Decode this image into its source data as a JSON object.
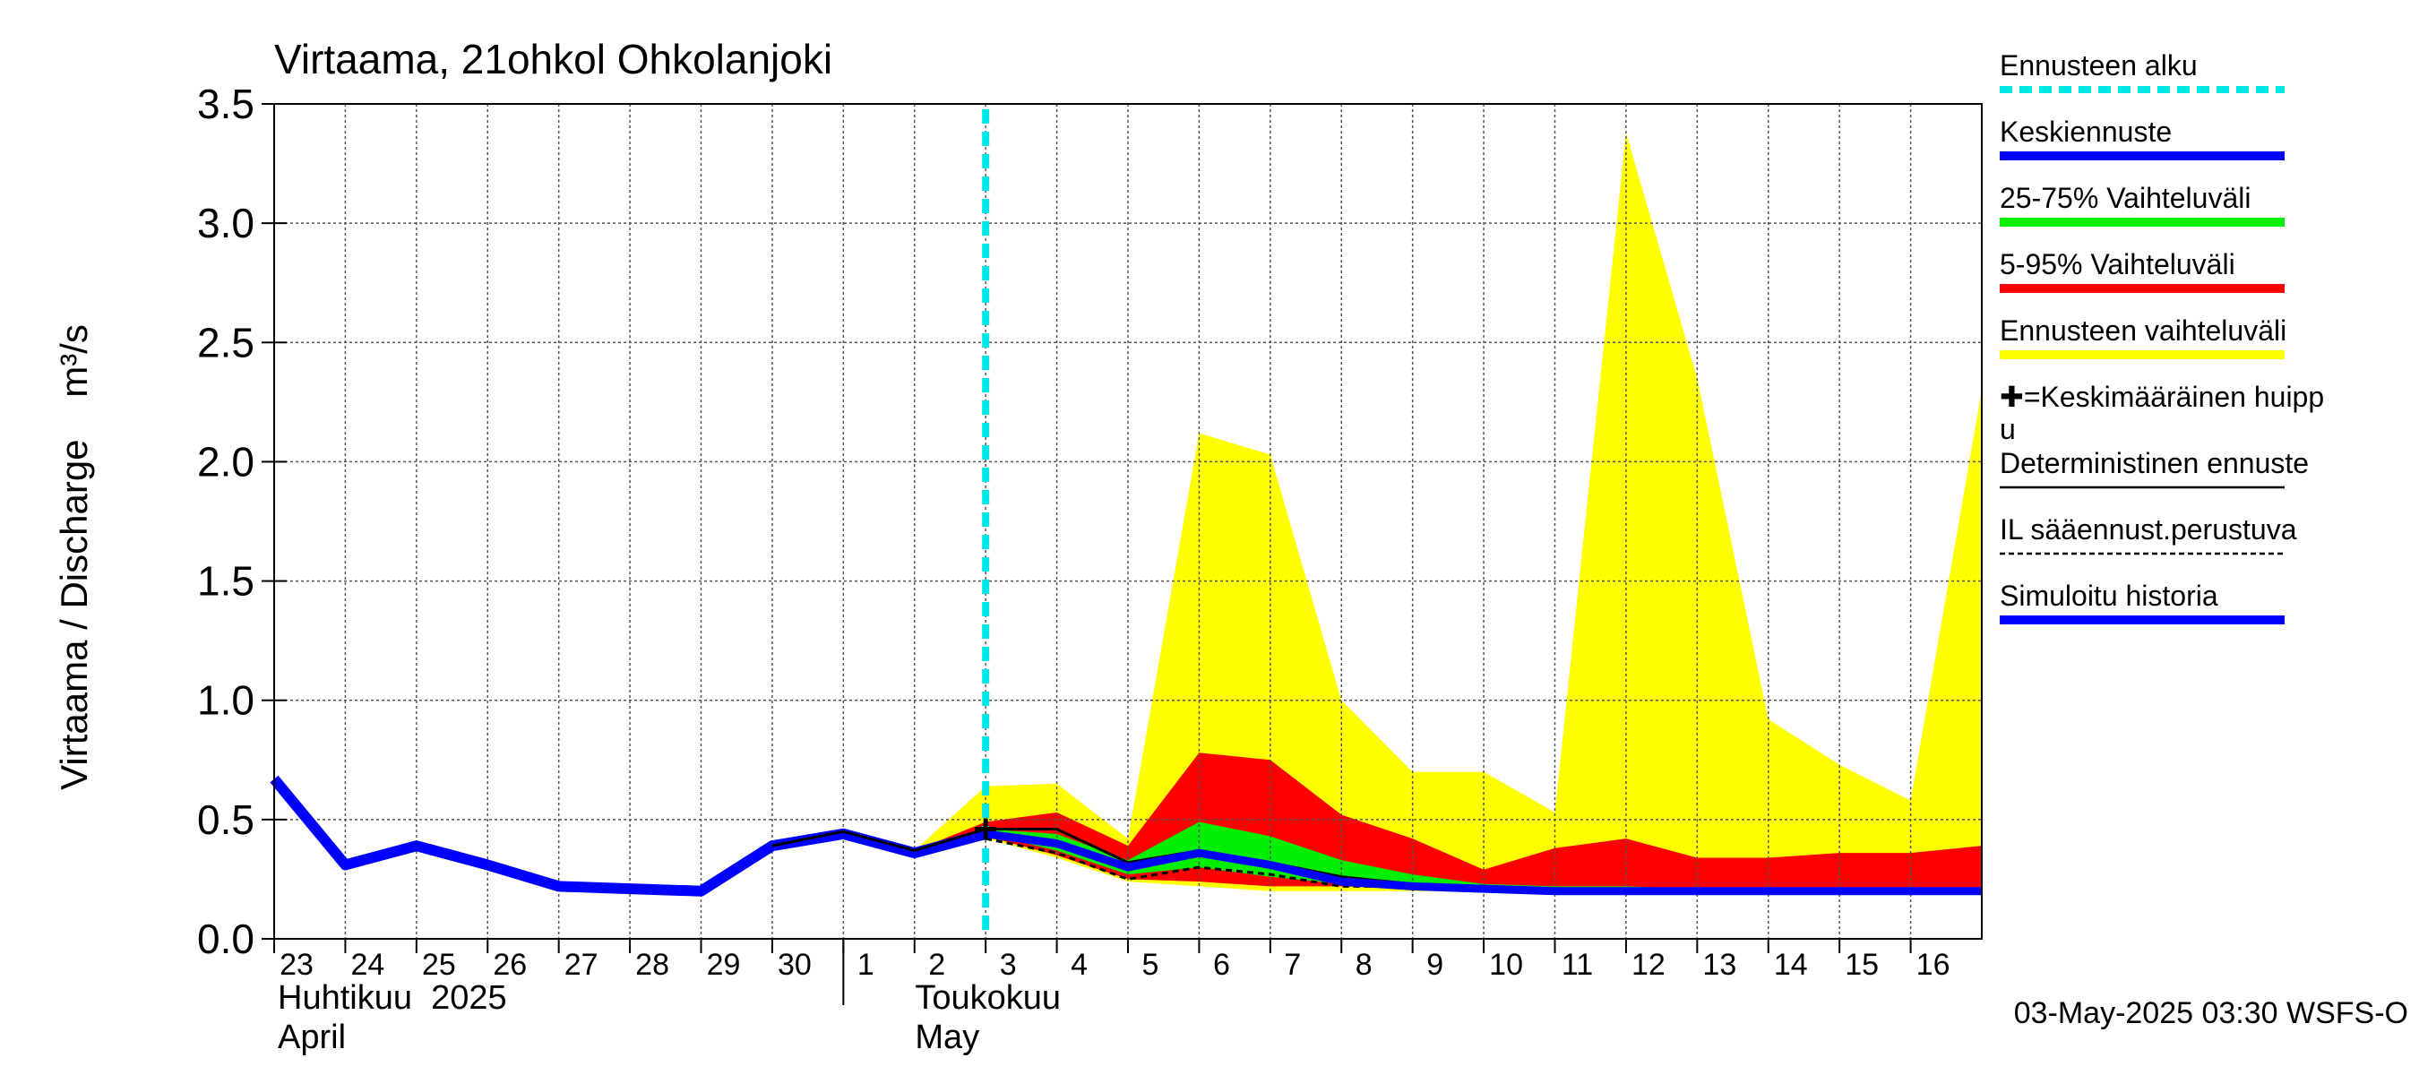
{
  "chart_data": {
    "type": "area",
    "title": "Virtaama, 21ohkol Ohkolanjoki",
    "ylabel": "Virtaama / Discharge    m³/s",
    "ylim": [
      0,
      3.5
    ],
    "yticks": [
      "0.0",
      "0.5",
      "1.0",
      "1.5",
      "2.0",
      "2.5",
      "3.0",
      "3.5"
    ],
    "xdomain": [
      0,
      24
    ],
    "xticks": [
      {
        "x": 0,
        "label": "23"
      },
      {
        "x": 1,
        "label": "24"
      },
      {
        "x": 2,
        "label": "25"
      },
      {
        "x": 3,
        "label": "26"
      },
      {
        "x": 4,
        "label": "27"
      },
      {
        "x": 5,
        "label": "28"
      },
      {
        "x": 6,
        "label": "29"
      },
      {
        "x": 7,
        "label": "30"
      },
      {
        "x": 8,
        "label": "1"
      },
      {
        "x": 9,
        "label": "2"
      },
      {
        "x": 10,
        "label": "3"
      },
      {
        "x": 11,
        "label": "4"
      },
      {
        "x": 12,
        "label": "5"
      },
      {
        "x": 13,
        "label": "6"
      },
      {
        "x": 14,
        "label": "7"
      },
      {
        "x": 15,
        "label": "8"
      },
      {
        "x": 16,
        "label": "9"
      },
      {
        "x": 17,
        "label": "10"
      },
      {
        "x": 18,
        "label": "11"
      },
      {
        "x": 19,
        "label": "12"
      },
      {
        "x": 20,
        "label": "13"
      },
      {
        "x": 21,
        "label": "14"
      },
      {
        "x": 22,
        "label": "15"
      },
      {
        "x": 23,
        "label": "16"
      }
    ],
    "month_labels": [
      {
        "x": 0,
        "line1": "Huhtikuu  2025",
        "line2": "April"
      },
      {
        "x": 8,
        "line1": "Toukokuu",
        "line2": "May"
      }
    ],
    "forecast_start_x": 10,
    "series": [
      {
        "name": "Ennusteen vaihteluväli",
        "color": "#ffff00",
        "kind": "band",
        "x": [
          9,
          10,
          11,
          12,
          13,
          14,
          15,
          16,
          17,
          18,
          19,
          20,
          21,
          22,
          23,
          24
        ],
        "upper": [
          0.37,
          0.64,
          0.65,
          0.42,
          2.12,
          2.03,
          1.0,
          0.7,
          0.7,
          0.53,
          3.38,
          2.35,
          0.92,
          0.73,
          0.58,
          2.3
        ],
        "lower": [
          0.37,
          0.42,
          0.34,
          0.24,
          0.22,
          0.2,
          0.2,
          0.2,
          0.2,
          0.2,
          0.2,
          0.2,
          0.2,
          0.2,
          0.2,
          0.2
        ]
      },
      {
        "name": "5-95% Vaihteluväli",
        "color": "#ff0000",
        "kind": "band",
        "x": [
          9,
          10,
          11,
          12,
          13,
          14,
          15,
          16,
          17,
          18,
          19,
          20,
          21,
          22,
          23,
          24
        ],
        "upper": [
          0.37,
          0.49,
          0.53,
          0.39,
          0.78,
          0.75,
          0.52,
          0.42,
          0.29,
          0.38,
          0.42,
          0.34,
          0.34,
          0.36,
          0.36,
          0.39
        ],
        "lower": [
          0.37,
          0.43,
          0.35,
          0.25,
          0.24,
          0.22,
          0.22,
          0.21,
          0.21,
          0.2,
          0.2,
          0.2,
          0.2,
          0.2,
          0.2,
          0.2
        ]
      },
      {
        "name": "25-75% Vaihteluväli",
        "color": "#00ee00",
        "kind": "band",
        "x": [
          9,
          10,
          11,
          12,
          13,
          14,
          15,
          16,
          17,
          18,
          19,
          20,
          21,
          22,
          23,
          24
        ],
        "upper": [
          0.37,
          0.46,
          0.44,
          0.33,
          0.49,
          0.43,
          0.33,
          0.27,
          0.23,
          0.22,
          0.22,
          0.21,
          0.21,
          0.21,
          0.21,
          0.21
        ],
        "lower": [
          0.37,
          0.44,
          0.37,
          0.27,
          0.3,
          0.26,
          0.23,
          0.22,
          0.21,
          0.21,
          0.2,
          0.2,
          0.2,
          0.2,
          0.2,
          0.2
        ]
      },
      {
        "name": "Simuloitu historia",
        "color": "#0000ff",
        "kind": "line",
        "width": 12,
        "x": [
          0,
          1,
          2,
          3,
          4,
          5,
          6,
          7,
          8,
          9,
          10
        ],
        "y": [
          0.67,
          0.31,
          0.39,
          0.31,
          0.22,
          0.21,
          0.2,
          0.39,
          0.44,
          0.36,
          0.44
        ]
      },
      {
        "name": "Deterministinen ennuste",
        "color": "#000000",
        "kind": "line",
        "width": 3,
        "x": [
          7,
          8,
          9,
          10,
          11,
          12,
          13,
          14,
          15,
          16,
          17,
          18,
          19,
          20,
          21,
          22,
          23,
          24
        ],
        "y": [
          0.39,
          0.45,
          0.37,
          0.46,
          0.46,
          0.32,
          0.37,
          0.32,
          0.26,
          0.23,
          0.22,
          0.21,
          0.21,
          0.2,
          0.2,
          0.2,
          0.2,
          0.2
        ]
      },
      {
        "name": "IL sääennust.perustuva",
        "color": "#000000",
        "kind": "line",
        "width": 3,
        "dash": true,
        "x": [
          10,
          11,
          12,
          13,
          14,
          15,
          16,
          17,
          18,
          19,
          20,
          21,
          22,
          23,
          24
        ],
        "y": [
          0.42,
          0.36,
          0.25,
          0.3,
          0.27,
          0.22,
          0.22,
          0.21,
          0.2,
          0.2,
          0.2,
          0.2,
          0.2,
          0.2,
          0.2
        ]
      },
      {
        "name": "Keskiennuste",
        "color": "#0000ff",
        "kind": "line",
        "width": 9,
        "x": [
          10,
          11,
          12,
          13,
          14,
          15,
          16,
          17,
          18,
          19,
          20,
          21,
          22,
          23,
          24
        ],
        "y": [
          0.44,
          0.4,
          0.3,
          0.36,
          0.31,
          0.24,
          0.22,
          0.21,
          0.2,
          0.2,
          0.2,
          0.2,
          0.2,
          0.2,
          0.2
        ]
      }
    ],
    "peak_marker": {
      "label": "Keskimääräinen huippu",
      "x": 10,
      "y": 0.46
    },
    "legend": [
      {
        "label": "Ennusteen alku",
        "color": "#00e5e5",
        "style": "dashed"
      },
      {
        "label": "Keskiennuste",
        "color": "#0000ff",
        "style": "line"
      },
      {
        "label": "25-75% Vaihteluväli",
        "color": "#00ee00",
        "style": "line"
      },
      {
        "label": "5-95% Vaihteluväli",
        "color": "#ff0000",
        "style": "line"
      },
      {
        "label": "Ennusteen vaihteluväli",
        "color": "#ffff00",
        "style": "line"
      },
      {
        "label": "✚=Keskimääräinen huipp",
        "label2": "u",
        "color": "#000000",
        "style": "none"
      },
      {
        "label": "Deterministinen ennuste",
        "color": "#000000",
        "style": "thin"
      },
      {
        "label": "IL sääennust.perustuva",
        "color": "#000000",
        "style": "dotted"
      },
      {
        "label": "Simuloitu historia",
        "color": "#0000ff",
        "style": "line"
      }
    ],
    "footer": "03-May-2025 03:30 WSFS-O"
  }
}
